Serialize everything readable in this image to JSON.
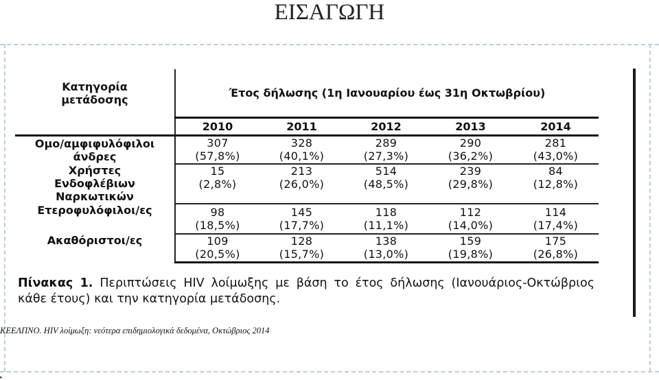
{
  "slide_title": "ΕΙΣΑΓΩΓΗ",
  "table": {
    "category_header": [
      "Κατηγορία",
      "μετάδοσης"
    ],
    "year_group_header": "Έτος δήλωσης (1η Ιανουαρίου έως 31η Οκτωβρίου)",
    "years": [
      "2010",
      "2011",
      "2012",
      "2013",
      "2014"
    ],
    "rows": [
      {
        "category": [
          "Ομο/αμφιφυλόφιλοι",
          "άνδρες"
        ],
        "cells": [
          {
            "count": "307",
            "pct": "(57,8%)"
          },
          {
            "count": "328",
            "pct": "(40,1%)"
          },
          {
            "count": "289",
            "pct": "(27,3%)"
          },
          {
            "count": "290",
            "pct": "(36,2%)"
          },
          {
            "count": "281",
            "pct": "(43,0%)"
          }
        ]
      },
      {
        "category": [
          "Χρήστες",
          "Ενδοφλέβιων",
          "Ναρκωτικών"
        ],
        "cells": [
          {
            "count": "15",
            "pct": "(2,8%)"
          },
          {
            "count": "213",
            "pct": "(26,0%)"
          },
          {
            "count": "514",
            "pct": "(48,5%)"
          },
          {
            "count": "239",
            "pct": "(29,8%)"
          },
          {
            "count": "84",
            "pct": "(12,8%)"
          }
        ]
      },
      {
        "category": [
          "Ετεροφυλόφιλοι/ες"
        ],
        "cells": [
          {
            "count": "98",
            "pct": "(18,5%)"
          },
          {
            "count": "145",
            "pct": "(17,7%)"
          },
          {
            "count": "118",
            "pct": "(11,1%)"
          },
          {
            "count": "112",
            "pct": "(14,0%)"
          },
          {
            "count": "114",
            "pct": "(17,4%)"
          }
        ]
      },
      {
        "category": [
          "Ακαθόριστοι/ες"
        ],
        "cells": [
          {
            "count": "109",
            "pct": "(20,5%)"
          },
          {
            "count": "128",
            "pct": "(15,7%)"
          },
          {
            "count": "138",
            "pct": "(13,0%)"
          },
          {
            "count": "159",
            "pct": "(19,8%)"
          },
          {
            "count": "175",
            "pct": "(26,8%)"
          }
        ]
      }
    ]
  },
  "caption": {
    "label": "Πίνακας 1.",
    "text": "Περιπτώσεις HIV λοίμωξης με βάση το έτος δήλωσης (Ιανουάριος-Οκτώβριος κάθε έτους) και την κατηγορία μετάδοσης."
  },
  "source": "ΚΕΕΛΠΝΟ. HIV λοίμωξη: νεότερα επιδημιολογικά δεδομένα, Οκτώβριος 2014",
  "colors": {
    "frame_dash": "#b7cfe0",
    "text": "#111111"
  }
}
